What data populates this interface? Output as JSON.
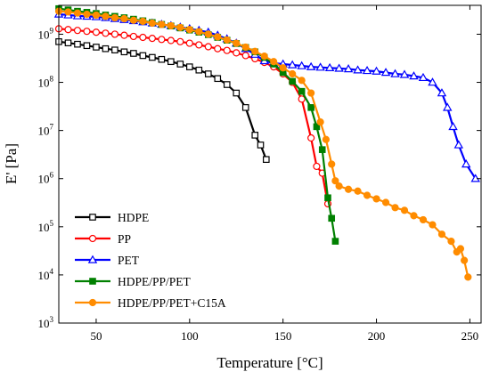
{
  "chart_data": {
    "type": "line",
    "xlabel": "Temperature [°C]",
    "ylabel": "E' [Pa]",
    "xlim": [
      30,
      256
    ],
    "ylim_exp": [
      3,
      9.6
    ],
    "y_scale": "log",
    "x_ticks": [
      50,
      100,
      150,
      200,
      250
    ],
    "y_ticks": [
      {
        "exp": 3,
        "base": "10",
        "sup": "3"
      },
      {
        "exp": 4,
        "base": "10",
        "sup": "4"
      },
      {
        "exp": 5,
        "base": "10",
        "sup": "5"
      },
      {
        "exp": 6,
        "base": "10",
        "sup": "6"
      },
      {
        "exp": 7,
        "base": "10",
        "sup": "7"
      },
      {
        "exp": 8,
        "base": "10",
        "sup": "8"
      },
      {
        "exp": 9,
        "base": "10",
        "sup": "9"
      }
    ],
    "legend_position": "bottom-left",
    "series": [
      {
        "name": "HDPE",
        "color": "#000000",
        "marker": "open-square",
        "x": [
          30,
          35,
          40,
          45,
          50,
          55,
          60,
          65,
          70,
          75,
          80,
          85,
          90,
          95,
          100,
          105,
          110,
          115,
          120,
          125,
          130,
          135,
          138,
          141
        ],
        "y": [
          700000000.0,
          660000000.0,
          620000000.0,
          580000000.0,
          540000000.0,
          500000000.0,
          470000000.0,
          430000000.0,
          400000000.0,
          360000000.0,
          330000000.0,
          300000000.0,
          270000000.0,
          240000000.0,
          210000000.0,
          180000000.0,
          150000000.0,
          120000000.0,
          90000000.0,
          60000000.0,
          30000000.0,
          8000000.0,
          5000000.0,
          2500000.0
        ]
      },
      {
        "name": "PP",
        "color": "#ff0000",
        "marker": "open-circle",
        "x": [
          30,
          35,
          40,
          45,
          50,
          55,
          60,
          65,
          70,
          75,
          80,
          85,
          90,
          95,
          100,
          105,
          110,
          115,
          120,
          125,
          130,
          135,
          140,
          145,
          150,
          155,
          160,
          165,
          168,
          171,
          174
        ],
        "y": [
          1300000000.0,
          1250000000.0,
          1200000000.0,
          1150000000.0,
          1100000000.0,
          1050000000.0,
          1000000000.0,
          950000000.0,
          900000000.0,
          860000000.0,
          820000000.0,
          780000000.0,
          740000000.0,
          700000000.0,
          650000000.0,
          600000000.0,
          550000000.0,
          500000000.0,
          460000000.0,
          410000000.0,
          360000000.0,
          310000000.0,
          260000000.0,
          210000000.0,
          150000000.0,
          100000000.0,
          45000000.0,
          7000000.0,
          1800000.0,
          1300000.0,
          300000.0
        ]
      },
      {
        "name": "PET",
        "color": "#0000ff",
        "marker": "open-triangle",
        "x": [
          30,
          35,
          40,
          45,
          50,
          55,
          60,
          65,
          70,
          75,
          80,
          85,
          90,
          95,
          100,
          105,
          110,
          115,
          120,
          125,
          130,
          135,
          140,
          145,
          150,
          155,
          160,
          165,
          170,
          175,
          180,
          185,
          190,
          195,
          200,
          205,
          210,
          215,
          220,
          225,
          230,
          235,
          238,
          241,
          244,
          248,
          253
        ],
        "y": [
          2600000000.0,
          2500000000.0,
          2400000000.0,
          2350000000.0,
          2300000000.0,
          2200000000.0,
          2100000000.0,
          2000000000.0,
          1900000000.0,
          1800000000.0,
          1700000000.0,
          1600000000.0,
          1500000000.0,
          1400000000.0,
          1300000000.0,
          1200000000.0,
          1100000000.0,
          950000000.0,
          800000000.0,
          650000000.0,
          500000000.0,
          380000000.0,
          280000000.0,
          250000000.0,
          240000000.0,
          230000000.0,
          220000000.0,
          210000000.0,
          205000000.0,
          200000000.0,
          195000000.0,
          190000000.0,
          180000000.0,
          175000000.0,
          170000000.0,
          160000000.0,
          150000000.0,
          145000000.0,
          135000000.0,
          125000000.0,
          100000000.0,
          60000000.0,
          30000000.0,
          12000000.0,
          5000000.0,
          2000000.0,
          1000000.0
        ]
      },
      {
        "name": "HDPE/PP/PET",
        "color": "#008000",
        "marker": "filled-square",
        "x": [
          30,
          35,
          40,
          45,
          50,
          55,
          60,
          65,
          70,
          75,
          80,
          85,
          90,
          95,
          100,
          105,
          110,
          115,
          120,
          125,
          130,
          135,
          140,
          145,
          150,
          155,
          160,
          165,
          168,
          171,
          174,
          176,
          178
        ],
        "y": [
          3400000000.0,
          3200000000.0,
          3000000000.0,
          2850000000.0,
          2700000000.0,
          2500000000.0,
          2350000000.0,
          2200000000.0,
          2050000000.0,
          1900000000.0,
          1750000000.0,
          1600000000.0,
          1480000000.0,
          1350000000.0,
          1220000000.0,
          1100000000.0,
          980000000.0,
          860000000.0,
          750000000.0,
          640000000.0,
          530000000.0,
          430000000.0,
          330000000.0,
          240000000.0,
          160000000.0,
          105000000.0,
          65000000.0,
          30000000.0,
          12000000.0,
          4000000.0,
          400000.0,
          150000.0,
          50000.0
        ]
      },
      {
        "name": "HDPE/PP/PET+C15A",
        "color": "#ff8c00",
        "marker": "filled-circle",
        "x": [
          30,
          35,
          40,
          45,
          50,
          55,
          60,
          65,
          70,
          75,
          80,
          85,
          90,
          95,
          100,
          105,
          110,
          115,
          120,
          125,
          130,
          135,
          140,
          145,
          150,
          155,
          160,
          165,
          170,
          173,
          176,
          178,
          180,
          185,
          190,
          195,
          200,
          205,
          210,
          215,
          220,
          225,
          230,
          235,
          240,
          243,
          245,
          247,
          249
        ],
        "y": [
          3000000000.0,
          2900000000.0,
          2750000000.0,
          2600000000.0,
          2500000000.0,
          2350000000.0,
          2200000000.0,
          2100000000.0,
          1950000000.0,
          1850000000.0,
          1700000000.0,
          1600000000.0,
          1500000000.0,
          1380000000.0,
          1250000000.0,
          1130000000.0,
          1000000000.0,
          880000000.0,
          760000000.0,
          650000000.0,
          540000000.0,
          440000000.0,
          350000000.0,
          270000000.0,
          200000000.0,
          150000000.0,
          110000000.0,
          60000000.0,
          15000000.0,
          6500000.0,
          2000000.0,
          900000.0,
          700000.0,
          600000.0,
          550000.0,
          450000.0,
          380000.0,
          320000.0,
          250000.0,
          220000.0,
          170000.0,
          140000.0,
          110000.0,
          70000.0,
          50000.0,
          30000.0,
          35000.0,
          20000.0,
          9000.0
        ]
      }
    ]
  }
}
